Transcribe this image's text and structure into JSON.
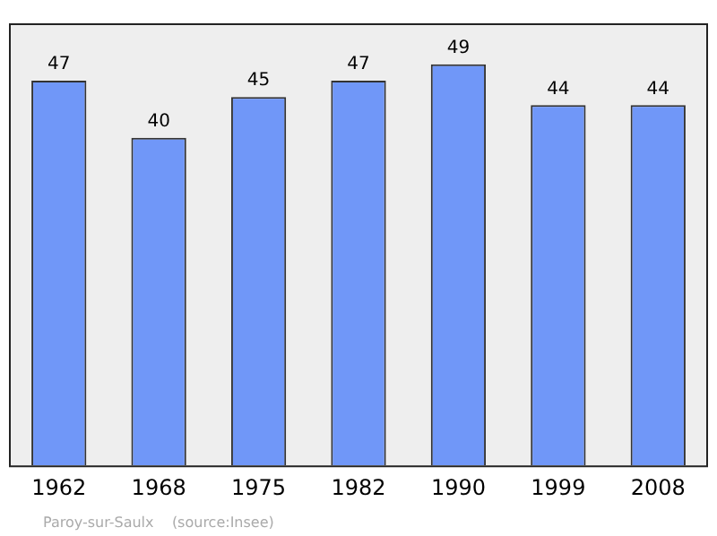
{
  "chart_data": {
    "type": "bar",
    "categories": [
      "1962",
      "1968",
      "1975",
      "1982",
      "1990",
      "1999",
      "2008"
    ],
    "values": [
      47,
      40,
      45,
      47,
      49,
      44,
      44
    ],
    "color": "#7097f8",
    "ylim": [
      0,
      54
    ],
    "tick_labels": "x",
    "data_labels": true,
    "grid": false,
    "annotations": [
      "Paroy-sur-Saulx    (source:Insee)"
    ]
  }
}
